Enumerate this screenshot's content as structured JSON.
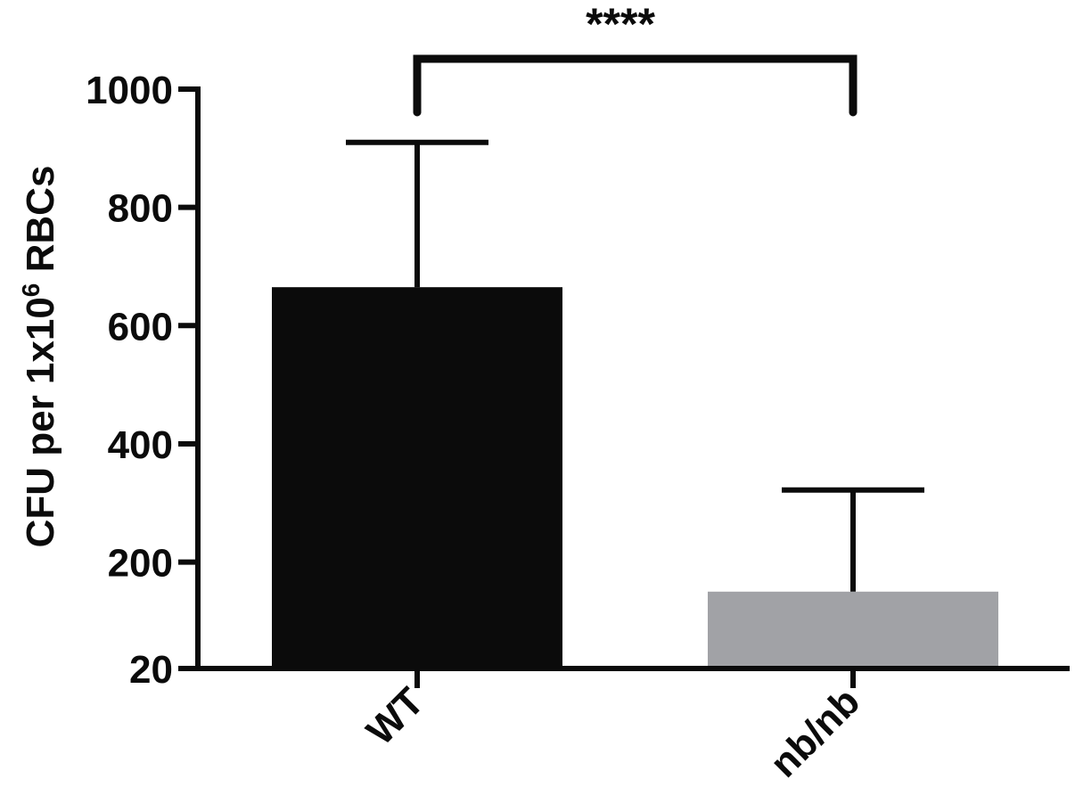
{
  "chart_data": {
    "type": "bar",
    "categories": [
      "WT",
      "nb/nb"
    ],
    "values": [
      665,
      150
    ],
    "error_upper": [
      910,
      322
    ],
    "colors": [
      "#0b0b0b",
      "#a1a2a6"
    ],
    "ylabel": {
      "prefix": "CFU per 1x10",
      "superscript": "6",
      "suffix": " RBCs"
    },
    "yticks": [
      "20",
      "200",
      "400",
      "600",
      "800",
      "1000"
    ],
    "ylim": [
      20,
      1000
    ],
    "significance": "****",
    "grid": false,
    "legend": "none"
  }
}
